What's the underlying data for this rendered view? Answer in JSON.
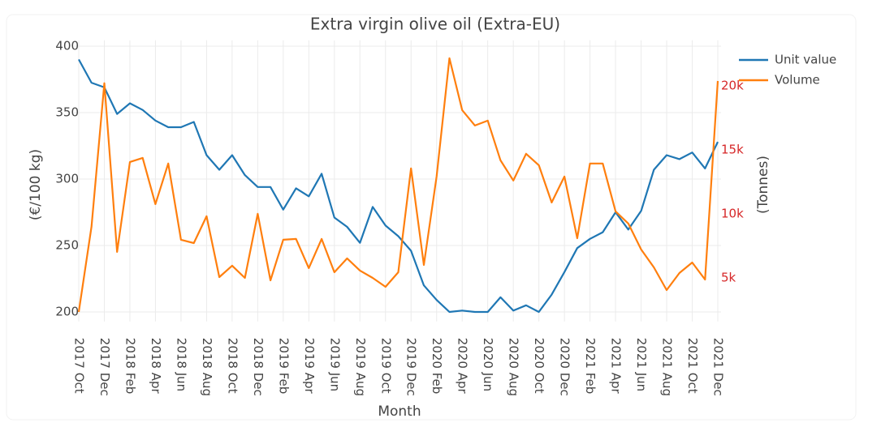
{
  "chart_data": {
    "type": "line",
    "title": "Extra virgin olive oil (Extra-EU)",
    "x_label": "Month",
    "y_label": "(€/100 kg)",
    "y2_label": "(Tonnes)",
    "categories": [
      "2017 Oct",
      null,
      "2017 Dec",
      null,
      "2018 Feb",
      null,
      "2018 Apr",
      null,
      "2018 Jun",
      null,
      "2018 Aug",
      null,
      "2018 Oct",
      null,
      "2018 Dec",
      null,
      "2019 Feb",
      null,
      "2019 Apr",
      null,
      "2019 Jun",
      null,
      "2019 Aug",
      null,
      "2019 Oct",
      null,
      "2019 Dec",
      null,
      "2020 Feb",
      null,
      "2020 Apr",
      null,
      "2020 Jun",
      null,
      "2020 Aug",
      null,
      "2020 Oct",
      null,
      "2020 Dec",
      null,
      "2021 Feb",
      null,
      "2021 Apr",
      null,
      "2021 Jun",
      null,
      "2021 Aug",
      null,
      "2021 Oct",
      null,
      "2021 Dec"
    ],
    "series": [
      {
        "name": "Unit value",
        "color": "#1f77b4",
        "axis": "y",
        "values": [
          390,
          372.5,
          369,
          349,
          357,
          352,
          344,
          339,
          339,
          343,
          318,
          307,
          318,
          303,
          294,
          294,
          277,
          293,
          287,
          304,
          271,
          264,
          252,
          279,
          265,
          257,
          246,
          220,
          209,
          200,
          201,
          200,
          200,
          211,
          201,
          205,
          200,
          213,
          230,
          248,
          255,
          260,
          275,
          262,
          276,
          307,
          318,
          315,
          320,
          308,
          328
        ]
      },
      {
        "name": "Volume",
        "color": "#ff7f0e",
        "axis": "y2",
        "values": [
          2340,
          9000,
          20200,
          7030,
          14050,
          14370,
          10760,
          13930,
          7980,
          7720,
          9810,
          5060,
          5950,
          5000,
          10000,
          4810,
          7980,
          8040,
          5760,
          8040,
          5440,
          6520,
          5570,
          5000,
          4300,
          5440,
          13550,
          6010,
          12910,
          22150,
          18100,
          16900,
          17280,
          14180,
          12600,
          14690,
          13800,
          10890,
          12910,
          8100,
          13930,
          13930,
          10190,
          9240,
          7220,
          5820,
          4050,
          5380,
          6200,
          4870,
          20380
        ]
      }
    ],
    "ylim": [
      194,
      402
    ],
    "yticks": [
      200,
      250,
      300,
      350,
      400
    ],
    "y2lim": [
      1720,
      23300
    ],
    "y2ticks": [
      {
        "value": 5000,
        "label": "5k"
      },
      {
        "value": 10000,
        "label": "10k"
      },
      {
        "value": 15000,
        "label": "15k"
      },
      {
        "value": 20000,
        "label": "20k"
      }
    ],
    "y2tick_color": "#d62728",
    "grid": true,
    "legend": "top-right"
  }
}
